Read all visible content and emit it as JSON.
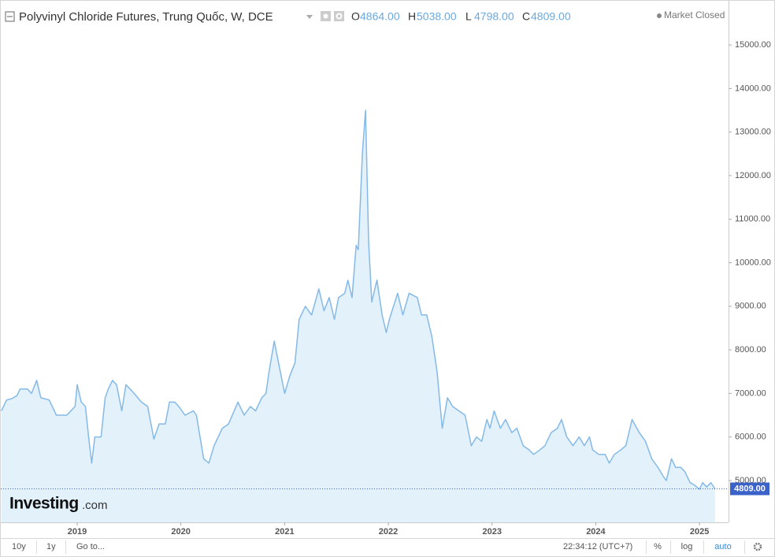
{
  "chart_data": {
    "type": "area",
    "title": "Polyvinyl Chloride Futures, Trung Quốc, W, DCE",
    "ohlc": [
      {
        "letter": "O",
        "value": 4864,
        "label": "4864.00"
      },
      {
        "letter": "H",
        "value": 5038,
        "label": "5038.00"
      },
      {
        "letter": "L",
        "value": 4798,
        "label": "4798.00"
      },
      {
        "letter": "C",
        "value": 4809,
        "label": "4809.00"
      }
    ],
    "status": "Market Closed",
    "watermark": [
      "Investing",
      ".com"
    ],
    "line_color": "#84b9e8",
    "fill_color": "#e2f1fa",
    "price_line_color": "#3b62c9",
    "xlim": [
      2018.256,
      2025.28
    ],
    "xticks": [
      2019,
      2020,
      2021,
      2022,
      2023,
      2024,
      2025
    ],
    "ylim": [
      4040,
      15490
    ],
    "yticks": [
      {
        "value": 5000,
        "label": "5000.00"
      },
      {
        "value": 6000,
        "label": "6000.00"
      },
      {
        "value": 7000,
        "label": "7000.00"
      },
      {
        "value": 8000,
        "label": "8000.00"
      },
      {
        "value": 9000,
        "label": "9000.00"
      },
      {
        "value": 10000,
        "label": "10000.00"
      },
      {
        "value": 11000,
        "label": "11000.00"
      },
      {
        "value": 12000,
        "label": "12000.00"
      },
      {
        "value": 13000,
        "label": "13000.00"
      },
      {
        "value": 14000,
        "label": "14000.00"
      },
      {
        "value": 15000,
        "label": "15000.00"
      }
    ],
    "series": [
      {
        "x": [
          2018.27,
          2018.32,
          2018.37,
          2018.42,
          2018.45,
          2018.52,
          2018.56,
          2018.61,
          2018.65,
          2018.73,
          2018.8,
          2018.9,
          2018.98,
          2019.0,
          2019.04,
          2019.08,
          2019.11,
          2019.14,
          2019.17,
          2019.23,
          2019.27,
          2019.3,
          2019.34,
          2019.38,
          2019.43,
          2019.47,
          2019.55,
          2019.62,
          2019.68,
          2019.74,
          2019.79,
          2019.85,
          2019.89,
          2019.94,
          2019.98,
          2020.04,
          2020.12,
          2020.15,
          2020.22,
          2020.27,
          2020.32,
          2020.4,
          2020.46,
          2020.55,
          2020.61,
          2020.67,
          2020.72,
          2020.78,
          2020.82,
          2020.85,
          2020.9,
          2020.95,
          2021.0,
          2021.05,
          2021.1,
          2021.14,
          2021.2,
          2021.26,
          2021.33,
          2021.38,
          2021.43,
          2021.48,
          2021.52,
          2021.58,
          2021.61,
          2021.65,
          2021.69,
          2021.71,
          2021.75,
          2021.78,
          2021.81,
          2021.84,
          2021.89,
          2021.94,
          2021.98,
          2022.01,
          2022.05,
          2022.09,
          2022.14,
          2022.2,
          2022.28,
          2022.32,
          2022.37,
          2022.42,
          2022.47,
          2022.52,
          2022.57,
          2022.62,
          2022.68,
          2022.74,
          2022.8,
          2022.85,
          2022.9,
          2022.95,
          2022.98,
          2023.02,
          2023.08,
          2023.13,
          2023.19,
          2023.24,
          2023.3,
          2023.36,
          2023.4,
          2023.46,
          2023.51,
          2023.57,
          2023.63,
          2023.67,
          2023.72,
          2023.78,
          2023.84,
          2023.89,
          2023.94,
          2023.97,
          2024.03,
          2024.09,
          2024.13,
          2024.18,
          2024.24,
          2024.29,
          2024.35,
          2024.42,
          2024.48,
          2024.54,
          2024.6,
          2024.65,
          2024.68,
          2024.73,
          2024.77,
          2024.82,
          2024.86,
          2024.91,
          2024.95,
          2025.0,
          2025.03,
          2025.07,
          2025.11,
          2025.15
        ],
        "values": [
          6600,
          6850,
          6880,
          6950,
          7100,
          7100,
          7000,
          7300,
          6900,
          6850,
          6500,
          6500,
          6700,
          7200,
          6800,
          6700,
          6000,
          5400,
          6000,
          6000,
          6900,
          7100,
          7300,
          7200,
          6600,
          7200,
          7000,
          6800,
          6700,
          5950,
          6300,
          6300,
          6800,
          6800,
          6700,
          6500,
          6600,
          6500,
          5500,
          5400,
          5800,
          6200,
          6300,
          6800,
          6500,
          6700,
          6600,
          6900,
          7000,
          7500,
          8200,
          7600,
          7000,
          7400,
          7700,
          8700,
          9000,
          8800,
          9400,
          8900,
          9200,
          8700,
          9200,
          9300,
          9600,
          9200,
          10400,
          10300,
          12500,
          13500,
          10500,
          9100,
          9600,
          8800,
          8400,
          8700,
          9000,
          9300,
          8800,
          9300,
          9200,
          8800,
          8800,
          8300,
          7500,
          6200,
          6900,
          6700,
          6600,
          6500,
          5800,
          6000,
          5900,
          6400,
          6200,
          6600,
          6200,
          6400,
          6100,
          6200,
          5800,
          5700,
          5600,
          5700,
          5800,
          6100,
          6200,
          6400,
          6000,
          5800,
          6000,
          5800,
          6000,
          5700,
          5600,
          5600,
          5400,
          5600,
          5700,
          5800,
          6400,
          6100,
          5900,
          5500,
          5300,
          5100,
          5000,
          5500,
          5300,
          5300,
          5200,
          4950,
          4900,
          4800,
          4950,
          4850,
          4950,
          4809
        ]
      }
    ]
  },
  "toolbar": {
    "left": [
      "10y",
      "1y",
      "Go to..."
    ],
    "time": "22:34:12 (UTC+7)",
    "right": [
      "%",
      "log",
      "auto"
    ]
  }
}
